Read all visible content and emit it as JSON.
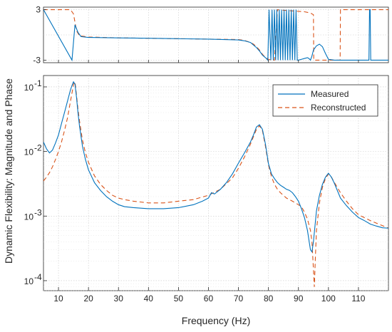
{
  "chart_data": [
    {
      "type": "line",
      "panel": "phase",
      "xlim": [
        5,
        120
      ],
      "ylim": [
        -3.3,
        3.3
      ],
      "yticks": [
        "3",
        "-3"
      ],
      "grid": true,
      "series": [
        {
          "name": "Measured",
          "color": "#0072BD",
          "style": "solid",
          "x": [
            5,
            14.5,
            15.5,
            16.5,
            17.5,
            20,
            30,
            40,
            50,
            60,
            70,
            72,
            74,
            75,
            76,
            77,
            78,
            79,
            79.8,
            80.2,
            80.8,
            81.2,
            81.6,
            82,
            82.4,
            82.8,
            83.2,
            83.6,
            84,
            84.4,
            84.8,
            85.2,
            85.6,
            86,
            86.4,
            86.8,
            87.2,
            87.6,
            88,
            88.4,
            88.8,
            89.2,
            89.6,
            90,
            91,
            92,
            93,
            93.5,
            94,
            94.5,
            95,
            96,
            97,
            98,
            99,
            100,
            102,
            104,
            106,
            108,
            110,
            112,
            113.5,
            113.7,
            113.9,
            114.1,
            118,
            120
          ],
          "y": [
            3.0,
            -3.0,
            1.2,
            0.3,
            -0.2,
            -0.3,
            -0.35,
            -0.4,
            -0.45,
            -0.5,
            -0.6,
            -0.7,
            -0.9,
            -1.2,
            -1.5,
            -1.9,
            -2.4,
            -2.7,
            -3.0,
            3.0,
            -3.0,
            3.0,
            -3.0,
            3.0,
            -3.0,
            3.0,
            -3.0,
            3.0,
            -3.0,
            3.0,
            -3.0,
            3.0,
            -3.0,
            3.0,
            -3.0,
            3.0,
            -3.0,
            3.0,
            -3.0,
            3.0,
            -3.0,
            3.0,
            -3.0,
            -3.0,
            -2.9,
            -2.8,
            -2.7,
            -2.8,
            -3.0,
            -2.5,
            -1.8,
            -1.3,
            -1.1,
            -1.4,
            -2.2,
            -2.9,
            -3.0,
            -3.0,
            -3.0,
            -3.0,
            -3.0,
            -3.0,
            -3.0,
            3.0,
            3.0,
            -3.0,
            -3.0,
            -3.0
          ]
        },
        {
          "name": "Reconstructed",
          "color": "#D95319",
          "style": "dashed",
          "x": [
            5,
            14,
            15,
            15.5,
            16,
            17,
            20,
            30,
            40,
            50,
            60,
            70,
            72,
            74,
            75,
            76,
            77,
            78,
            79,
            80,
            81,
            82,
            83,
            84,
            86,
            88,
            90,
            92,
            94,
            95,
            95.1,
            96,
            98,
            100,
            102,
            103.9,
            104,
            110,
            120
          ],
          "y": [
            3.0,
            3.0,
            2.5,
            1.5,
            0.5,
            -0.1,
            -0.25,
            -0.35,
            -0.4,
            -0.45,
            -0.5,
            -0.55,
            -0.65,
            -0.9,
            -1.1,
            -1.4,
            -1.8,
            -2.3,
            -2.7,
            -2.9,
            -3.0,
            -3.0,
            3.0,
            2.95,
            2.9,
            2.85,
            2.8,
            2.75,
            2.6,
            2.4,
            -3.0,
            -3.0,
            -3.0,
            -3.0,
            -3.0,
            -3.0,
            3.0,
            3.0,
            3.0
          ]
        }
      ]
    },
    {
      "type": "line",
      "panel": "magnitude",
      "xscale": "linear",
      "yscale": "log",
      "xlim": [
        5,
        120
      ],
      "ylim": [
        7e-05,
        0.15
      ],
      "xlabel": "Frequency (Hz)",
      "ylabel": "Dynamic Flexibility: Magnitude and Phase",
      "xticks": [
        "10",
        "20",
        "30",
        "40",
        "50",
        "60",
        "70",
        "80",
        "90",
        "100",
        "110"
      ],
      "yticks": [
        "10-1",
        "10-2",
        "10-3",
        "10-4"
      ],
      "grid": true,
      "legend_position": "top-right",
      "series": [
        {
          "name": "Measured",
          "color": "#0072BD",
          "style": "solid",
          "x": [
            5,
            6,
            7,
            8,
            9,
            10,
            11,
            12,
            13,
            14,
            14.5,
            15,
            15.5,
            16,
            16.5,
            17,
            18,
            19,
            20,
            22,
            24,
            26,
            28,
            30,
            32,
            35,
            40,
            45,
            50,
            55,
            58,
            60,
            61,
            62,
            64,
            66,
            68,
            70,
            72,
            74,
            75,
            76,
            77,
            78,
            79,
            80,
            81,
            82,
            83,
            84,
            85,
            86,
            87,
            88,
            89,
            90,
            91,
            92,
            93,
            94,
            94.5,
            95,
            96,
            97,
            98,
            99,
            100,
            101,
            102,
            104,
            106,
            108,
            110,
            112,
            114,
            116,
            118,
            120
          ],
          "y": [
            0.014,
            0.011,
            0.0095,
            0.0105,
            0.0135,
            0.018,
            0.027,
            0.04,
            0.06,
            0.09,
            0.105,
            0.12,
            0.11,
            0.07,
            0.04,
            0.025,
            0.012,
            0.0075,
            0.0052,
            0.0033,
            0.0025,
            0.002,
            0.0017,
            0.0015,
            0.0014,
            0.00135,
            0.0013,
            0.0013,
            0.00135,
            0.0015,
            0.0017,
            0.0019,
            0.0023,
            0.0022,
            0.0026,
            0.0033,
            0.0045,
            0.0066,
            0.0095,
            0.014,
            0.018,
            0.024,
            0.026,
            0.022,
            0.013,
            0.0065,
            0.0045,
            0.0038,
            0.0033,
            0.003,
            0.0028,
            0.0026,
            0.0025,
            0.0023,
            0.002,
            0.0017,
            0.0013,
            0.00095,
            0.0006,
            0.0003,
            0.00028,
            0.0004,
            0.0012,
            0.0021,
            0.0031,
            0.004,
            0.0046,
            0.004,
            0.0032,
            0.0019,
            0.00145,
            0.00115,
            0.00095,
            0.00085,
            0.00075,
            0.0007,
            0.00066,
            0.00065
          ]
        },
        {
          "name": "Reconstructed",
          "color": "#D95319",
          "style": "dashed",
          "x": [
            5,
            6,
            7,
            8,
            9,
            10,
            11,
            12,
            13,
            14,
            14.5,
            15,
            15.5,
            16,
            16.5,
            17,
            18,
            19,
            20,
            22,
            24,
            26,
            28,
            30,
            32,
            35,
            40,
            45,
            50,
            55,
            60,
            64,
            68,
            70,
            72,
            74,
            75,
            76,
            77,
            78,
            79,
            80,
            81,
            82,
            83,
            84,
            86,
            88,
            90,
            91,
            92,
            93,
            94,
            94.5,
            95,
            95.3,
            95.6,
            96,
            97,
            98,
            99,
            100,
            101,
            102,
            104,
            106,
            108,
            110,
            114,
            120
          ],
          "y": [
            0.0035,
            0.004,
            0.0047,
            0.0058,
            0.0075,
            0.01,
            0.014,
            0.021,
            0.033,
            0.06,
            0.08,
            0.11,
            0.12,
            0.075,
            0.045,
            0.03,
            0.015,
            0.0095,
            0.0068,
            0.0042,
            0.0031,
            0.0025,
            0.0021,
            0.0019,
            0.0018,
            0.0017,
            0.0016,
            0.0016,
            0.0017,
            0.0018,
            0.0021,
            0.0026,
            0.0039,
            0.0055,
            0.0082,
            0.013,
            0.017,
            0.022,
            0.025,
            0.021,
            0.012,
            0.0062,
            0.0041,
            0.0031,
            0.0026,
            0.0023,
            0.0019,
            0.0017,
            0.0015,
            0.0014,
            0.00115,
            0.0009,
            0.0006,
            0.0004,
            0.00015,
            8e-05,
            0.0002,
            0.0006,
            0.0016,
            0.0028,
            0.0038,
            0.0045,
            0.004,
            0.0033,
            0.0023,
            0.0017,
            0.0013,
            0.00105,
            0.00085,
            0.00065
          ]
        }
      ]
    }
  ]
}
